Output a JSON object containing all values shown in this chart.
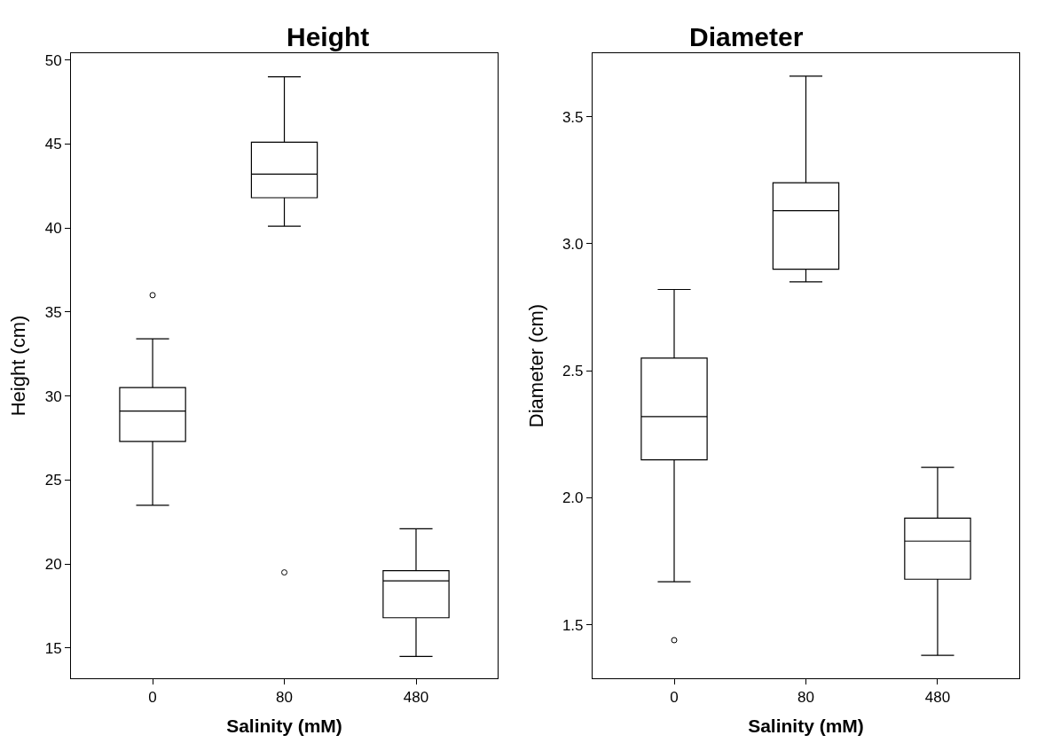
{
  "chart_data": [
    {
      "type": "box",
      "title": "Height",
      "xlabel": "Salinity (mM)",
      "ylabel": "Height (cm)",
      "categories": [
        "0",
        "80",
        "480"
      ],
      "boxes": [
        {
          "low": 23.5,
          "q1": 27.3,
          "median": 29.1,
          "q3": 30.5,
          "high": 33.4,
          "outliers": [
            36.0
          ]
        },
        {
          "low": 40.1,
          "q1": 41.8,
          "median": 43.2,
          "q3": 45.1,
          "high": 49.0,
          "outliers": [
            19.5
          ]
        },
        {
          "low": 14.5,
          "q1": 16.8,
          "median": 19.0,
          "q3": 19.6,
          "high": 22.1
        }
      ],
      "color": "#000000",
      "ylim": [
        13.2,
        50.4
      ],
      "yticks": [
        15,
        20,
        25,
        30,
        35,
        40,
        45,
        50
      ]
    },
    {
      "type": "box",
      "title": "Diameter",
      "xlabel": "Salinity (mM)",
      "ylabel": "Diameter (cm)",
      "categories": [
        "0",
        "80",
        "480"
      ],
      "boxes": [
        {
          "low": 1.67,
          "q1": 2.15,
          "median": 2.32,
          "q3": 2.55,
          "high": 2.82,
          "outliers": [
            1.44
          ]
        },
        {
          "low": 2.85,
          "q1": 2.9,
          "median": 3.13,
          "q3": 3.24,
          "high": 3.66
        },
        {
          "low": 1.38,
          "q1": 1.68,
          "median": 1.83,
          "q3": 1.92,
          "high": 2.12
        }
      ],
      "color": "#000000",
      "ylim": [
        1.29,
        3.75
      ],
      "yticks": [
        {
          "value": 1.5,
          "label": "1.5"
        },
        {
          "value": 2,
          "label": "2.0"
        },
        {
          "value": 2.5,
          "label": "2.5"
        },
        {
          "value": 3,
          "label": "3.0"
        },
        {
          "value": 3.5,
          "label": "3.5"
        }
      ]
    }
  ]
}
